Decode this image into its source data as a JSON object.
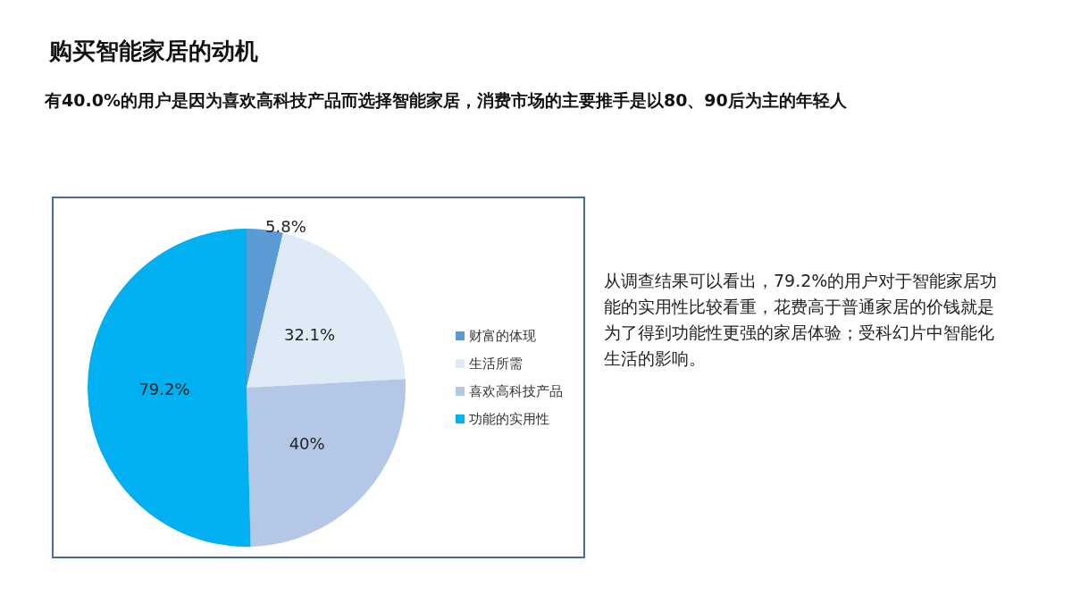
{
  "chart_data": {
    "type": "pie",
    "title": "购买智能家居的动机",
    "subtitle": "有40.0%的用户是因为喜欢高科技产品而选择智能家居，消费市场的主要推手是以80、90后为主的年轻人",
    "categories": [
      "财富的体现",
      "生活所需",
      "喜欢高科技产品",
      "功能的实用性"
    ],
    "values": [
      5.8,
      32.1,
      40,
      79.2
    ],
    "value_labels": [
      "5.8%",
      "32.1%",
      "40%",
      "79.2%"
    ],
    "colors": [
      "#5b9bd5",
      "#deebf7",
      "#b4c7e7",
      "#00b0f0"
    ],
    "legend": "right",
    "annotations": [
      "从调查结果可以看出，79.2%的用户对于智能家居功能的实用性比较看重，花费高于普通家居的价钱就是为了得到功能性更强的家居体验；受科幻片中智能化生活的影响。"
    ]
  }
}
